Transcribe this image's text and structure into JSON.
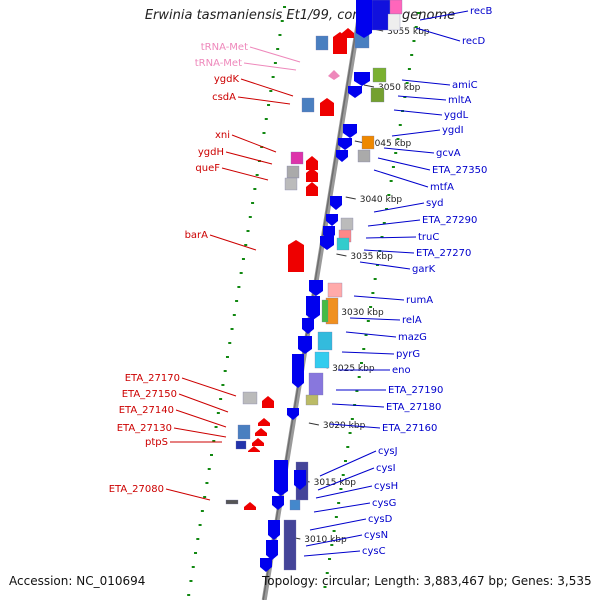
{
  "title": "Erwinia tasmaniensis Et1/99, complete genome",
  "accession": "Accession: NC_010694",
  "topology": "Topology: circular; Length: 3,883,467 bp; Genes: 3,535",
  "colors": {
    "forward": "#ee0000",
    "reverse": "#0000ee",
    "trna_label": "#ee88bb",
    "cds_label_forward": "#cc0000",
    "cds_label_reverse": "#0000cc",
    "tick": "#118811",
    "backbone": "#888888"
  },
  "scale_labels": [
    "3055 kbp",
    "3050 kbp",
    "3045 kbp",
    "3040 kbp",
    "3035 kbp",
    "3030 kbp",
    "3025 kbp",
    "3020 kbp",
    "3015 kbp",
    "3010 kbp"
  ],
  "left_labels": [
    {
      "text": "tRNA-Met",
      "kind": "trna"
    },
    {
      "text": "tRNA-Met",
      "kind": "trna"
    },
    {
      "text": "ygdK",
      "kind": "cds"
    },
    {
      "text": "csdA",
      "kind": "cds"
    },
    {
      "text": "xni",
      "kind": "cds"
    },
    {
      "text": "ygdH",
      "kind": "cds"
    },
    {
      "text": "queF",
      "kind": "cds"
    },
    {
      "text": "barA",
      "kind": "cds"
    },
    {
      "text": "ETA_27170",
      "kind": "cds"
    },
    {
      "text": "ETA_27150",
      "kind": "cds"
    },
    {
      "text": "ETA_27140",
      "kind": "cds"
    },
    {
      "text": "ETA_27130",
      "kind": "cds"
    },
    {
      "text": "ptpS",
      "kind": "cds"
    },
    {
      "text": "ETA_27080",
      "kind": "cds"
    }
  ],
  "right_labels": [
    "recB",
    "recD",
    "amiC",
    "mltA",
    "ygdL",
    "ygdI",
    "gcvA",
    "ETA_27350",
    "mtfA",
    "syd",
    "ETA_27290",
    "truC",
    "ETA_27270",
    "garK",
    "rumA",
    "relA",
    "mazG",
    "pyrG",
    "eno",
    "ETA_27190",
    "ETA_27180",
    "ETA_27160",
    "cysJ",
    "cysI",
    "cysH",
    "cysG",
    "cysD",
    "cysN",
    "cysC"
  ]
}
